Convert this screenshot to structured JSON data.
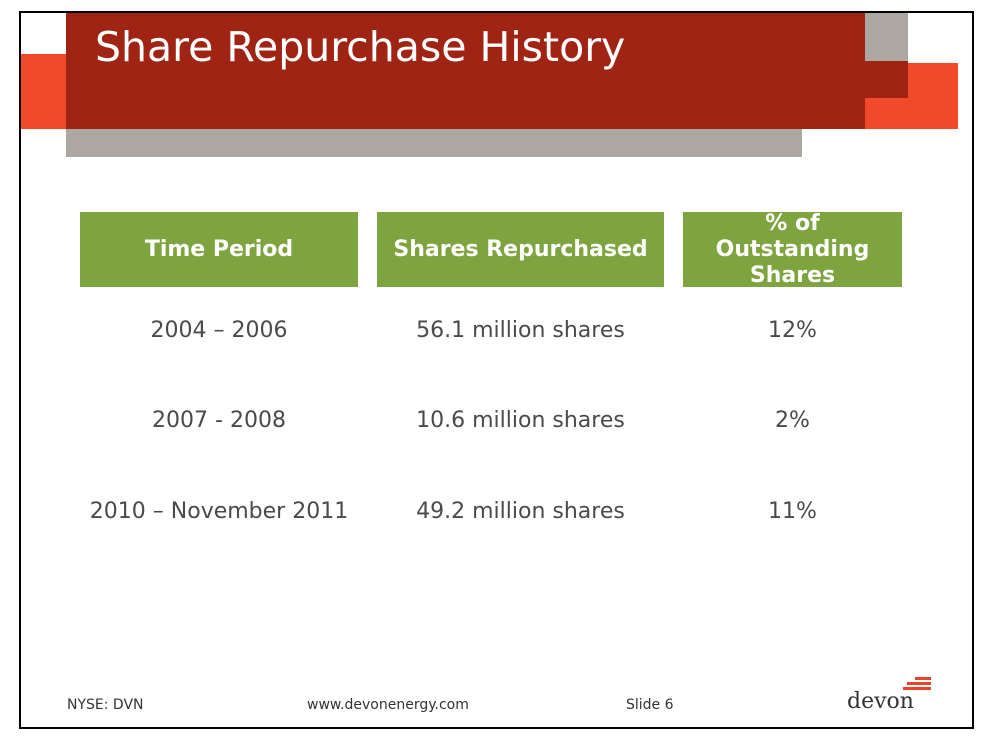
{
  "slide": {
    "title": "Share Repurchase History",
    "table": {
      "headers": [
        "Time Period",
        "Shares Repurchased",
        "% of Outstanding Shares"
      ],
      "rows": [
        [
          "2004 – 2006",
          "56.1 million shares",
          "12%"
        ],
        [
          "2007 - 2008",
          "10.6 million shares",
          "2%"
        ],
        [
          "2010 – November 2011",
          "49.2 million shares",
          "11%"
        ]
      ]
    },
    "footer": {
      "ticker": "NYSE: DVN",
      "website": "www.devonenergy.com",
      "slide_number": "Slide 6"
    },
    "logo": {
      "text": "devon",
      "icon": "devon-logo-icon"
    },
    "colors": {
      "title_bar": "#a02414",
      "accent_orange": "#f04a2a",
      "gray": "#aca8a1",
      "header_green": "#7ea43f"
    }
  }
}
